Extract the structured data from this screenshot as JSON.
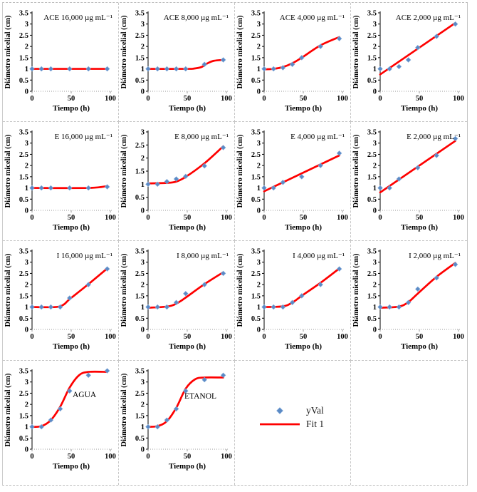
{
  "page": {
    "background": "#ffffff",
    "grid_border_color": "#c7c7c7"
  },
  "colors": {
    "point_fill": "#5b8ac5",
    "point_edge": "#7fa8d9",
    "fit_line": "#fe0000",
    "axis": "#000000",
    "axis_dotted": "#999999",
    "text": "#000000"
  },
  "legend": {
    "yval_label": "yVal",
    "fit_label": "Fit 1"
  },
  "axes": {
    "xlabel": "Tiempo (h)",
    "ylabel": "Diámetro micelial (cm)",
    "xticks": [
      0,
      50,
      100
    ],
    "xlim": [
      0,
      100
    ]
  },
  "chart_data": [
    {
      "type": "scatter",
      "title": "ACE 16,000 µg mL⁻¹",
      "ylim": [
        0,
        3.5
      ],
      "ytick_step": 0.5,
      "x": [
        0,
        12,
        24,
        48,
        72,
        96
      ],
      "y": [
        1,
        1,
        1,
        1,
        1,
        1
      ],
      "fit": [
        [
          0,
          1
        ],
        [
          96,
          1
        ]
      ]
    },
    {
      "type": "scatter",
      "title": "ACE 8,000 µg mL⁻¹",
      "ylim": [
        0,
        3.5
      ],
      "ytick_step": 0.5,
      "x": [
        0,
        12,
        24,
        36,
        48,
        72,
        96
      ],
      "y": [
        1,
        1,
        1,
        1,
        1,
        1.2,
        1.4
      ],
      "fit": [
        [
          0,
          1
        ],
        [
          48,
          1
        ],
        [
          58,
          1.01
        ],
        [
          68,
          1.08
        ],
        [
          76,
          1.25
        ],
        [
          84,
          1.36
        ],
        [
          96,
          1.4
        ]
      ]
    },
    {
      "type": "scatter",
      "title": "ACE 4,000 µg mL⁻¹",
      "ylim": [
        0,
        3.5
      ],
      "ytick_step": 0.5,
      "x": [
        0,
        12,
        24,
        36,
        48,
        72,
        96
      ],
      "y": [
        1,
        1,
        1.05,
        1.2,
        1.5,
        2,
        2.35
      ],
      "fit": [
        [
          0,
          0.98
        ],
        [
          12,
          1.0
        ],
        [
          24,
          1.08
        ],
        [
          36,
          1.25
        ],
        [
          48,
          1.5
        ],
        [
          72,
          2.05
        ],
        [
          96,
          2.42
        ]
      ]
    },
    {
      "type": "scatter",
      "title": "ACE 2,000 µg mL⁻¹",
      "ylim": [
        0,
        3.5
      ],
      "ytick_step": 0.5,
      "x": [
        0,
        12,
        24,
        36,
        48,
        72,
        96
      ],
      "y": [
        1,
        1,
        1.1,
        1.4,
        1.95,
        2.45,
        3
      ],
      "fit": [
        [
          0,
          0.75
        ],
        [
          96,
          3.05
        ]
      ]
    },
    {
      "type": "scatter",
      "title": "E 16,000 µg mL⁻¹",
      "ylim": [
        0,
        3.5
      ],
      "ytick_step": 0.5,
      "x": [
        0,
        12,
        24,
        48,
        72,
        96
      ],
      "y": [
        1,
        1,
        1,
        1,
        1,
        1.05
      ],
      "fit": [
        [
          0,
          1
        ],
        [
          72,
          1
        ],
        [
          96,
          1.08
        ]
      ]
    },
    {
      "type": "scatter",
      "title": "E 8,000 µg mL⁻¹",
      "ylim": [
        0,
        3
      ],
      "ytick_step": 0.5,
      "x": [
        0,
        12,
        24,
        36,
        48,
        72,
        96
      ],
      "y": [
        1,
        1,
        1.1,
        1.2,
        1.3,
        1.7,
        2.4
      ],
      "fit": [
        [
          0,
          1.03
        ],
        [
          24,
          1.05
        ],
        [
          36,
          1.1
        ],
        [
          48,
          1.28
        ],
        [
          72,
          1.8
        ],
        [
          96,
          2.45
        ]
      ]
    },
    {
      "type": "scatter",
      "title": "E 4,000 µg mL⁻¹",
      "ylim": [
        0,
        3.5
      ],
      "ytick_step": 0.5,
      "x": [
        0,
        12,
        24,
        48,
        72,
        96
      ],
      "y": [
        1,
        1,
        1.25,
        1.5,
        2,
        2.55
      ],
      "fit": [
        [
          0,
          0.85
        ],
        [
          96,
          2.45
        ]
      ]
    },
    {
      "type": "scatter",
      "title": "E 2,000 µg mL⁻¹",
      "ylim": [
        0,
        3.5
      ],
      "ytick_step": 0.5,
      "x": [
        0,
        12,
        24,
        48,
        72,
        96
      ],
      "y": [
        1,
        1,
        1.4,
        1.9,
        2.45,
        3.2
      ],
      "fit": [
        [
          0,
          0.8
        ],
        [
          96,
          3.1
        ]
      ]
    },
    {
      "type": "scatter",
      "title": "I 16,000 µg mL⁻¹",
      "ylim": [
        0,
        3.5
      ],
      "ytick_step": 0.5,
      "x": [
        0,
        12,
        24,
        36,
        48,
        72,
        96
      ],
      "y": [
        1,
        1,
        1,
        1,
        1.4,
        2,
        2.7
      ],
      "fit": [
        [
          0,
          1
        ],
        [
          30,
          1
        ],
        [
          40,
          1.1
        ],
        [
          48,
          1.35
        ],
        [
          72,
          2.02
        ],
        [
          96,
          2.72
        ]
      ]
    },
    {
      "type": "scatter",
      "title": "I 8,000 µg mL⁻¹",
      "ylim": [
        0,
        3.5
      ],
      "ytick_step": 0.5,
      "x": [
        0,
        12,
        24,
        36,
        48,
        72,
        96
      ],
      "y": [
        1,
        1,
        1,
        1.2,
        1.6,
        2,
        2.5
      ],
      "fit": [
        [
          0,
          0.97
        ],
        [
          24,
          1.02
        ],
        [
          36,
          1.15
        ],
        [
          48,
          1.42
        ],
        [
          72,
          2.02
        ],
        [
          96,
          2.55
        ]
      ]
    },
    {
      "type": "scatter",
      "title": "I 4,000 µg mL⁻¹",
      "ylim": [
        0,
        3.5
      ],
      "ytick_step": 0.5,
      "x": [
        0,
        12,
        24,
        36,
        48,
        72,
        96
      ],
      "y": [
        1,
        1,
        1,
        1.2,
        1.5,
        2,
        2.7
      ],
      "fit": [
        [
          0,
          1
        ],
        [
          24,
          1.03
        ],
        [
          36,
          1.2
        ],
        [
          48,
          1.5
        ],
        [
          72,
          2.08
        ],
        [
          96,
          2.72
        ]
      ]
    },
    {
      "type": "scatter",
      "title": "I 2,000 µg mL⁻¹",
      "ylim": [
        0,
        3.5
      ],
      "ytick_step": 0.5,
      "x": [
        0,
        12,
        24,
        36,
        48,
        72,
        96
      ],
      "y": [
        1,
        1,
        1,
        1.2,
        1.8,
        2.3,
        2.9
      ],
      "fit": [
        [
          0,
          0.97
        ],
        [
          24,
          1.02
        ],
        [
          36,
          1.22
        ],
        [
          48,
          1.6
        ],
        [
          72,
          2.35
        ],
        [
          96,
          2.97
        ]
      ]
    },
    {
      "type": "scatter",
      "title": "AGUA",
      "title_pos": {
        "x": 97,
        "y": 49
      },
      "ylim": [
        0,
        3.5
      ],
      "ytick_step": 0.5,
      "x": [
        0,
        12,
        24,
        36,
        48,
        72,
        96
      ],
      "y": [
        1,
        1,
        1.3,
        1.8,
        2.6,
        3.3,
        3.5
      ],
      "fit": [
        [
          0,
          1
        ],
        [
          12,
          1.03
        ],
        [
          24,
          1.3
        ],
        [
          36,
          1.9
        ],
        [
          48,
          2.75
        ],
        [
          60,
          3.3
        ],
        [
          72,
          3.45
        ],
        [
          96,
          3.45
        ]
      ]
    },
    {
      "type": "scatter",
      "title": "ETANOL",
      "title_pos": {
        "x": 91,
        "y": 51
      },
      "ylim": [
        0,
        3.5
      ],
      "ytick_step": 0.5,
      "x": [
        0,
        12,
        24,
        36,
        48,
        72,
        96
      ],
      "y": [
        1,
        1,
        1.3,
        1.8,
        2.6,
        3.1,
        3.3
      ],
      "fit": [
        [
          0,
          1
        ],
        [
          12,
          1.03
        ],
        [
          24,
          1.25
        ],
        [
          36,
          1.85
        ],
        [
          48,
          2.7
        ],
        [
          60,
          3.12
        ],
        [
          72,
          3.2
        ],
        [
          96,
          3.2
        ]
      ]
    }
  ]
}
